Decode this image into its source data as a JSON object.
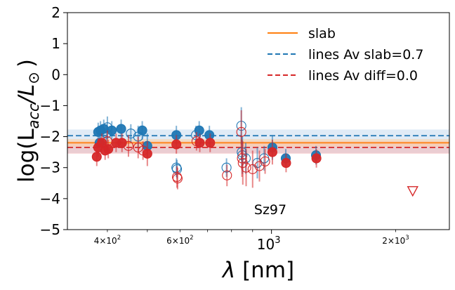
{
  "chart_data": {
    "type": "scatter",
    "xscale": "log",
    "xlim": [
      320,
      2700
    ],
    "ylim": [
      -5,
      2
    ],
    "xlabel_prefix": "λ",
    "xlabel_unit": " [nm]",
    "ylabel_main": "log(L",
    "ylabel_sub": "acc",
    "ylabel_tail": "/L",
    "ylabel_sun": "⊙",
    "ylabel_close": ")",
    "y_ticks": [
      {
        "value": 2,
        "label": "2"
      },
      {
        "value": 1,
        "label": "1"
      },
      {
        "value": 0,
        "label": "0"
      },
      {
        "value": -1,
        "label": "−1"
      },
      {
        "value": -2,
        "label": "−2"
      },
      {
        "value": -3,
        "label": "−3"
      },
      {
        "value": -4,
        "label": "−4"
      },
      {
        "value": -5,
        "label": "−5"
      }
    ],
    "x_major_ticks": [
      {
        "value": 1000,
        "base": "10",
        "exp": "3"
      }
    ],
    "x_minor_labeled_ticks": [
      {
        "value": 400,
        "mant": "4",
        "times": "×",
        "base": "10",
        "exp": "2"
      },
      {
        "value": 600,
        "mant": "6",
        "times": "×",
        "base": "10",
        "exp": "2"
      },
      {
        "value": 2000,
        "mant": "2",
        "times": "×",
        "base": "10",
        "exp": "3"
      }
    ],
    "x_minor_ticks": [
      500,
      700,
      800,
      900
    ],
    "annotation": "Sz97",
    "legend": [
      {
        "label": "slab",
        "style": "solid",
        "color": "#ff7f0e"
      },
      {
        "label": "lines Av slab=0.7",
        "style": "dashed",
        "color": "#1f77b4"
      },
      {
        "label": "lines Av diff=0.0",
        "style": "dashed",
        "color": "#d62728"
      }
    ],
    "reference_lines": {
      "slab": {
        "value": -2.2,
        "band": [
          -2.32,
          -2.08
        ],
        "color": "#ff7f0e",
        "band_color": "#fdd0a2"
      },
      "lines_av_slab": {
        "value": -1.97,
        "band": [
          -2.53,
          -1.77
        ],
        "color": "#1f77b4",
        "band_color": "#c6dbef"
      },
      "lines_av_diff": {
        "value": -2.35,
        "band": [
          -2.55,
          -2.15
        ],
        "color": "#d62728",
        "band_color": "#f4b4b4"
      }
    },
    "series": [
      {
        "name": "Av slab=0.7 (blue)",
        "color": "#1f77b4",
        "points": [
          {
            "x": 380,
            "y": -1.85,
            "err": 0.3,
            "filled": true
          },
          {
            "x": 385,
            "y": -1.8,
            "err": 0.3,
            "filled": true
          },
          {
            "x": 383,
            "y": -2.2,
            "err": 0.3,
            "filled": true
          },
          {
            "x": 392,
            "y": -1.75,
            "err": 0.3,
            "filled": true
          },
          {
            "x": 400,
            "y": -1.7,
            "err": 0.35,
            "filled": false
          },
          {
            "x": 398,
            "y": -1.9,
            "err": 0.3,
            "filled": false
          },
          {
            "x": 410,
            "y": -1.8,
            "err": 0.3,
            "filled": true
          },
          {
            "x": 432,
            "y": -1.75,
            "err": 0.3,
            "filled": true
          },
          {
            "x": 456,
            "y": -1.9,
            "err": 0.3,
            "filled": false
          },
          {
            "x": 475,
            "y": -2.0,
            "err": 0.35,
            "filled": false
          },
          {
            "x": 486,
            "y": -1.8,
            "err": 0.3,
            "filled": true
          },
          {
            "x": 500,
            "y": -2.3,
            "err": 0.4,
            "filled": true
          },
          {
            "x": 588,
            "y": -1.95,
            "err": 0.3,
            "filled": true
          },
          {
            "x": 588,
            "y": -3.0,
            "err": 0.3,
            "filled": false
          },
          {
            "x": 590,
            "y": -3.05,
            "err": 0.3,
            "filled": false
          },
          {
            "x": 656,
            "y": -1.95,
            "err": 0.3,
            "filled": false
          },
          {
            "x": 668,
            "y": -1.8,
            "err": 0.3,
            "filled": true
          },
          {
            "x": 707,
            "y": -1.95,
            "err": 0.3,
            "filled": true
          },
          {
            "x": 778,
            "y": -3.0,
            "err": 0.3,
            "filled": false
          },
          {
            "x": 845,
            "y": -1.65,
            "err": 0.6,
            "filled": false
          },
          {
            "x": 847,
            "y": -2.5,
            "err": 0.5,
            "filled": false
          },
          {
            "x": 850,
            "y": -2.6,
            "err": 0.6,
            "filled": false
          },
          {
            "x": 866,
            "y": -2.7,
            "err": 0.5,
            "filled": false
          },
          {
            "x": 924,
            "y": -2.85,
            "err": 0.5,
            "filled": false
          },
          {
            "x": 960,
            "y": -2.7,
            "err": 0.4,
            "filled": false
          },
          {
            "x": 1005,
            "y": -2.35,
            "err": 0.4,
            "filled": true
          },
          {
            "x": 1083,
            "y": -2.7,
            "err": 0.3,
            "filled": true
          },
          {
            "x": 1282,
            "y": -2.6,
            "err": 0.3,
            "filled": true
          }
        ]
      },
      {
        "name": "Av diff=0.0 (red)",
        "color": "#d62728",
        "points": [
          {
            "x": 377,
            "y": -2.65,
            "err": 0.3,
            "filled": true
          },
          {
            "x": 380,
            "y": -2.35,
            "err": 0.3,
            "filled": true
          },
          {
            "x": 388,
            "y": -2.2,
            "err": 0.3,
            "filled": true
          },
          {
            "x": 395,
            "y": -2.45,
            "err": 0.3,
            "filled": true
          },
          {
            "x": 402,
            "y": -2.4,
            "err": 0.3,
            "filled": true
          },
          {
            "x": 400,
            "y": -2.15,
            "err": 0.35,
            "filled": false
          },
          {
            "x": 420,
            "y": -2.2,
            "err": 0.3,
            "filled": true
          },
          {
            "x": 434,
            "y": -2.2,
            "err": 0.3,
            "filled": true
          },
          {
            "x": 450,
            "y": -2.3,
            "err": 0.35,
            "filled": false
          },
          {
            "x": 475,
            "y": -2.35,
            "err": 0.35,
            "filled": false
          },
          {
            "x": 488,
            "y": -2.45,
            "err": 0.3,
            "filled": false
          },
          {
            "x": 500,
            "y": -2.55,
            "err": 0.4,
            "filled": true
          },
          {
            "x": 588,
            "y": -2.25,
            "err": 0.3,
            "filled": true
          },
          {
            "x": 590,
            "y": -3.3,
            "err": 0.35,
            "filled": false
          },
          {
            "x": 592,
            "y": -3.35,
            "err": 0.35,
            "filled": false
          },
          {
            "x": 658,
            "y": -2.15,
            "err": 0.3,
            "filled": false
          },
          {
            "x": 670,
            "y": -2.2,
            "err": 0.3,
            "filled": true
          },
          {
            "x": 710,
            "y": -2.2,
            "err": 0.3,
            "filled": true
          },
          {
            "x": 780,
            "y": -3.25,
            "err": 0.35,
            "filled": false
          },
          {
            "x": 845,
            "y": -1.85,
            "err": 0.7,
            "filled": false
          },
          {
            "x": 848,
            "y": -2.7,
            "err": 0.6,
            "filled": false
          },
          {
            "x": 852,
            "y": -2.85,
            "err": 0.7,
            "filled": false
          },
          {
            "x": 868,
            "y": -3.0,
            "err": 0.6,
            "filled": false
          },
          {
            "x": 900,
            "y": -3.05,
            "err": 0.6,
            "filled": false
          },
          {
            "x": 935,
            "y": -2.95,
            "err": 0.5,
            "filled": false
          },
          {
            "x": 965,
            "y": -2.8,
            "err": 0.4,
            "filled": false
          },
          {
            "x": 1005,
            "y": -2.5,
            "err": 0.4,
            "filled": true
          },
          {
            "x": 1085,
            "y": -2.85,
            "err": 0.3,
            "filled": true
          },
          {
            "x": 1285,
            "y": -2.7,
            "err": 0.3,
            "filled": true
          }
        ]
      }
    ],
    "upper_limits": [
      {
        "x": 2200,
        "y": -3.75,
        "color": "#d62728"
      }
    ]
  }
}
